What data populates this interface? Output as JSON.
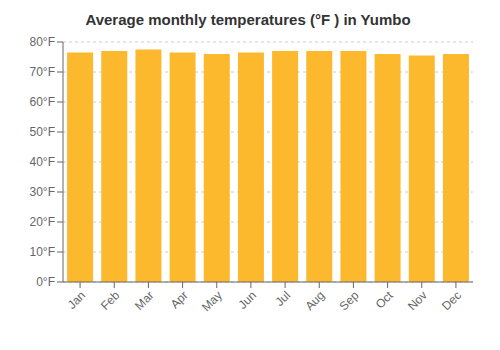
{
  "chart_data": {
    "type": "bar",
    "title": "Average monthly temperatures (°F ) in Yumbo",
    "categories": [
      "Jan",
      "Feb",
      "Mar",
      "Apr",
      "May",
      "Jun",
      "Jul",
      "Aug",
      "Sep",
      "Oct",
      "Nov",
      "Dec"
    ],
    "values": [
      76.5,
      77.0,
      77.5,
      76.5,
      76.0,
      76.5,
      77.0,
      77.0,
      77.0,
      76.0,
      75.5,
      76.0
    ],
    "color": "#FDB92E",
    "ylim": [
      0,
      80
    ],
    "yticks": [
      {
        "value": 0,
        "label": "0°F"
      },
      {
        "value": 10,
        "label": "10°F"
      },
      {
        "value": 20,
        "label": "20°F"
      },
      {
        "value": 30,
        "label": "30°F"
      },
      {
        "value": 40,
        "label": "40°F"
      },
      {
        "value": 50,
        "label": "50°F"
      },
      {
        "value": 60,
        "label": "60°F"
      },
      {
        "value": 70,
        "label": "70°F"
      },
      {
        "value": 80,
        "label": "80°F"
      }
    ],
    "grid": true
  }
}
